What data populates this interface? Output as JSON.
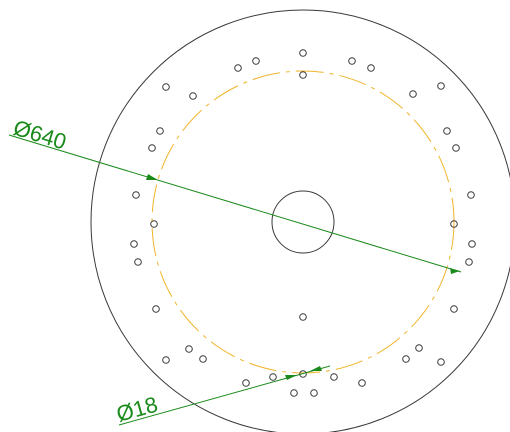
{
  "colors": {
    "outline": "#3a3a3a",
    "center_line": "#f0b429",
    "dimension": "#1a8a1a",
    "background": "#ffffff"
  },
  "dimensions": {
    "large_diameter": {
      "label": "Ø640"
    },
    "hole_diameter": {
      "label": "Ø18"
    }
  }
}
